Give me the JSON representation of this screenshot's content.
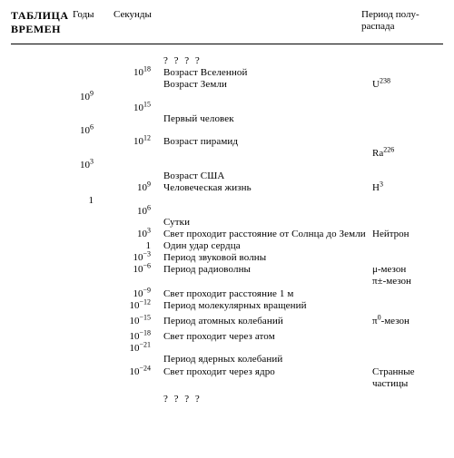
{
  "title": {
    "l1": "ТАБЛИЦА",
    "l2": "ВРЕМЕН"
  },
  "headers": {
    "years": "Годы",
    "seconds": "Секунды",
    "half": "Период полу-\nраспада"
  },
  "q": "? ? ? ?",
  "y": {
    "e9": "10",
    "e9s": "9",
    "e6": "10",
    "e6s": "6",
    "e3": "10",
    "e3s": "3",
    "one": "1"
  },
  "s": {
    "e18": "18",
    "e15": "15",
    "e12": "12",
    "e9": "9",
    "e6": "6",
    "e3": "3",
    "one": "1",
    "m3": "−3",
    "m6": "−6",
    "m9": "−9",
    "m12": "−12",
    "m15": "−15",
    "m18": "−18",
    "m21": "−21",
    "m24": "−24"
  },
  "t": {
    "univ": "Возраст  Вселенной",
    "earth": "Возраст  Земли",
    "man": "Первый  человек",
    "pyr": "Возраст  пирамид",
    "usa": "Возраст  США",
    "life": "Человеческая  жизнь",
    "day": "Сутки",
    "sun": "Свет  проходит  расстояние от  Солнца  до  Земли",
    "heart": "Один  удар  сердца",
    "sound": "Период  звуковой  волны",
    "radio": "Период  радиоволны",
    "m1": "Свет  проходит  расстояние  1 м",
    "mol": "Период  молекулярных  вращений",
    "atom": "Период   атомных   колебаний",
    "cross": "Свет  проходит  через  атом",
    "nucosc": "Период  ядерных  колебаний",
    "nucleus": "Свет  проходит  через  ядро"
  },
  "h": {
    "u238": "U",
    "u238s": "238",
    "ra226": "Ra",
    "ra226s": "226",
    "h3": "H",
    "h3s": "3",
    "neutron": "Нейтрон",
    "mu": "μ-мезон",
    "pi": "π±-мезон",
    "pi0": "π",
    "pi0s": "0",
    "pi0tail": "-мезон",
    "strange1": "Странные",
    "strange2": "частицы"
  }
}
